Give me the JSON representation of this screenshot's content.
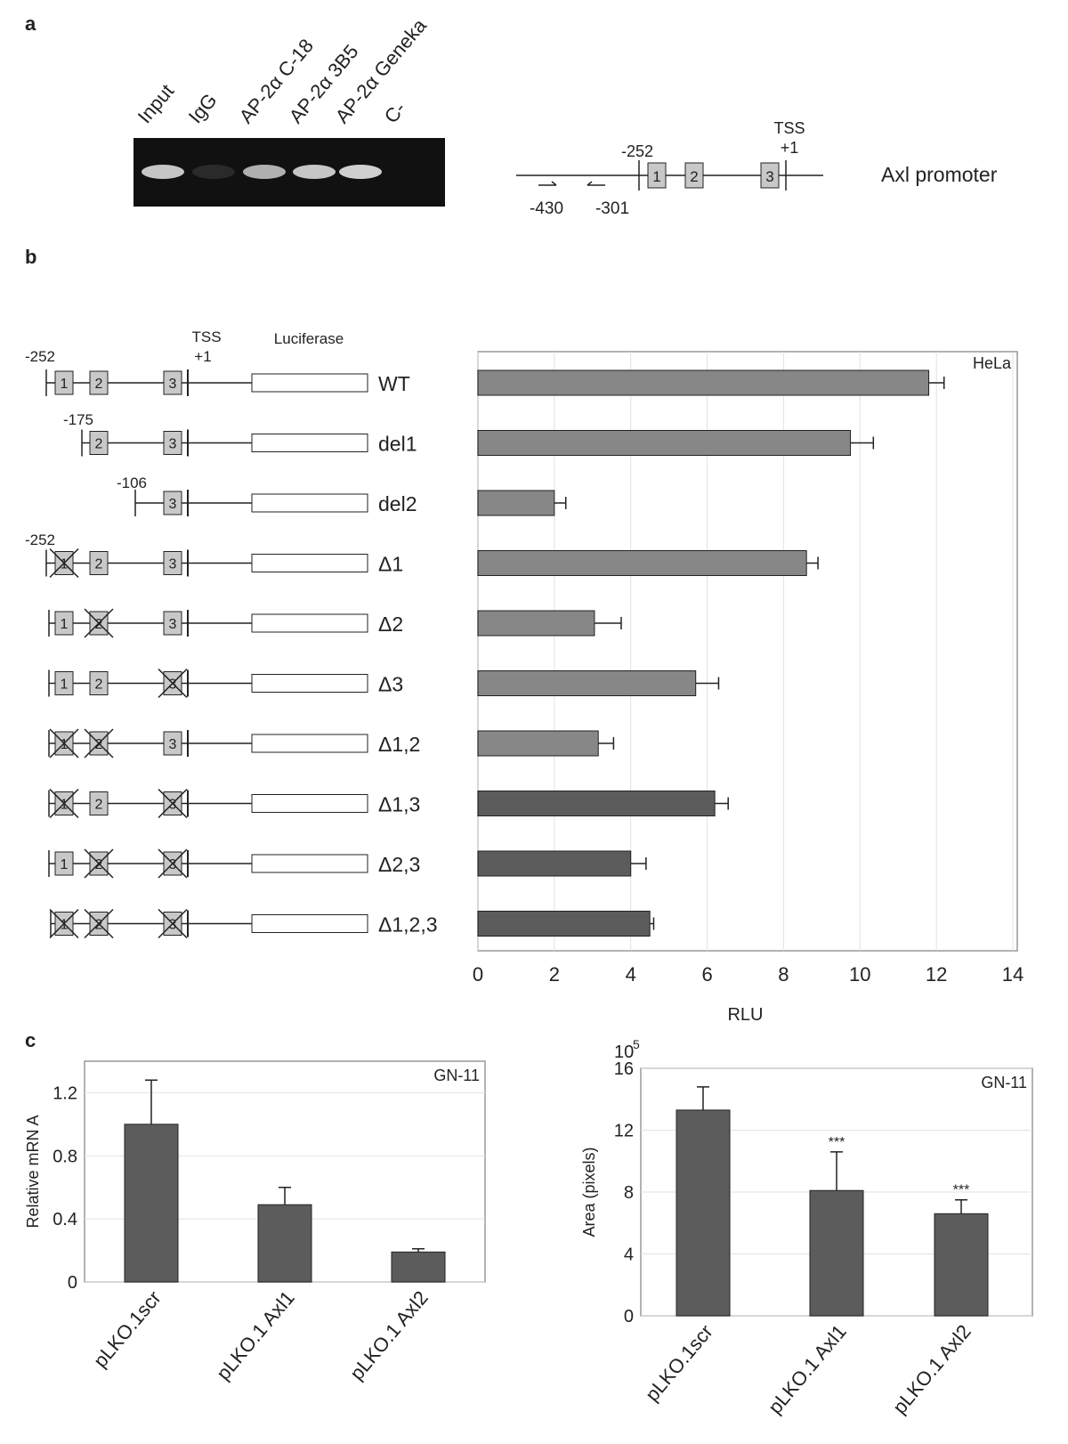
{
  "panel_labels": [
    "a",
    "b",
    "c"
  ],
  "gel": {
    "lanes": [
      "Input",
      "IgG",
      "AP-2α C-18",
      "AP-2α 3B5",
      "AP-2α Geneka",
      "C-"
    ]
  },
  "promoter": {
    "tss": "TSS",
    "plus1": "+1",
    "start": "-252",
    "primer_forward": "-430",
    "primer_reverse": "-301",
    "box_labels": [
      "1",
      "2",
      "3"
    ],
    "title": "Axl promoter"
  },
  "constructs": {
    "tss": "TSS",
    "plus1": "+1",
    "luciferase": "Luciferase",
    "start_labels": [
      "-252",
      "-175",
      "-106",
      "-252"
    ],
    "box_labels": [
      "1",
      "2",
      "3"
    ]
  },
  "chart_data": [
    {
      "type": "hbar",
      "annotation": "HeLa",
      "xlabel": "RLU",
      "categories": [
        "WT",
        "del1",
        "del2",
        "Δ1",
        "Δ2",
        "Δ3",
        "Δ1,2",
        "Δ1,3",
        "Δ2,3",
        "Δ1,2,3"
      ],
      "series": [
        {
          "values": [
            11.8,
            9.75,
            2.0,
            8.6,
            3.05,
            5.7,
            3.15,
            6.2,
            4.0,
            4.5
          ],
          "errors": [
            0.4,
            0.6,
            0.3,
            0.3,
            0.7,
            0.6,
            0.4,
            0.35,
            0.4,
            0.1
          ],
          "colors": [
            "#878787",
            "#878787",
            "#878787",
            "#878787",
            "#878787",
            "#878787",
            "#878787",
            "#5c5c5c",
            "#5c5c5c",
            "#5c5c5c"
          ]
        }
      ],
      "xlim": [
        0,
        14
      ],
      "xticks": [
        0,
        2,
        4,
        6,
        8,
        10,
        12,
        14
      ],
      "grid": true
    },
    {
      "type": "bar",
      "annotation": "GN-11",
      "ylabel": "Relative mRN A",
      "categories": [
        "pLKO.1scr",
        "pLKO.1 Axl1",
        "pLKO.1 Axl2"
      ],
      "series": [
        {
          "values": [
            1.0,
            0.49,
            0.19
          ],
          "errors": [
            0.28,
            0.11,
            0.02
          ],
          "color": "#5c5c5c"
        }
      ],
      "ylim": [
        0,
        1.4
      ],
      "yticks": [
        0,
        0.4,
        0.8,
        1.2
      ],
      "grid": true
    },
    {
      "type": "bar",
      "annotation": "GN-11",
      "ylabel": "Area (pixels)",
      "y_scale_label": {
        "base": "10",
        "exponent": "5"
      },
      "categories": [
        "pLKO.1scr",
        "pLKO.1 Axl1",
        "pLKO.1 Axl2"
      ],
      "series": [
        {
          "values": [
            13.3,
            8.1,
            6.6
          ],
          "errors": [
            1.5,
            2.5,
            0.9
          ],
          "color": "#5c5c5c"
        }
      ],
      "significance": [
        null,
        "***",
        "***"
      ],
      "ylim": [
        0,
        16
      ],
      "yticks": [
        0,
        4,
        8,
        12,
        16
      ],
      "grid": true
    }
  ]
}
